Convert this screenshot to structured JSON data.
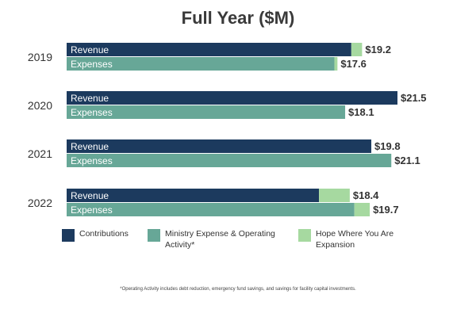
{
  "chart_data": {
    "type": "bar",
    "orientation": "horizontal",
    "stacked": true,
    "title": "Full Year ($M)",
    "xlabel": "",
    "ylabel": "",
    "grid": false,
    "legend_position": "bottom",
    "xlim": [
      0,
      21.5
    ],
    "categories": [
      "2019",
      "2020",
      "2021",
      "2022"
    ],
    "bar_labels": [
      "Revenue",
      "Expenses"
    ],
    "series": [
      {
        "name": "Contributions",
        "bar": "Revenue",
        "color": "#1c3a5e",
        "values": [
          18.5,
          21.5,
          19.8,
          16.4
        ]
      },
      {
        "name": "Ministry Expense & Operating Activity*",
        "bar": "Expenses",
        "color": "#67a797",
        "values": [
          17.4,
          18.1,
          21.1,
          18.7
        ]
      },
      {
        "name": "Hope Where You Are Expansion",
        "bar": "both",
        "color": "#a6d9a0",
        "revenue_values": [
          0.7,
          0,
          0,
          2.0
        ],
        "expense_values": [
          0.2,
          0,
          0,
          1.0
        ]
      }
    ],
    "totals": {
      "revenue": [
        "$19.2",
        "$21.5",
        "$19.8",
        "$18.4"
      ],
      "expenses": [
        "$17.6",
        "$18.1",
        "$21.1",
        "$19.7"
      ]
    },
    "revenue_total_values": [
      19.2,
      21.5,
      19.8,
      18.4
    ],
    "expense_total_values": [
      17.6,
      18.1,
      21.1,
      19.7
    ]
  },
  "legend": {
    "contributions": "Contributions",
    "ministry": "Ministry Expense & Operating Activity*",
    "hope": "Hope Where You Are Expansion"
  },
  "footnote": "*Operating Activity includes debt reduction, emergency fund savings, and savings for facility capital investments."
}
